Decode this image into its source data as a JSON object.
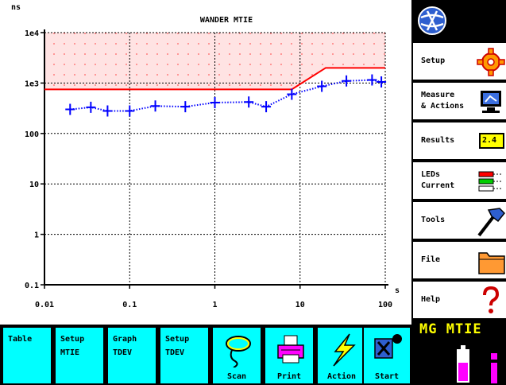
{
  "chart_data": {
    "type": "line",
    "title": "WANDER MTIE",
    "ylabel": "ns",
    "xlabel": "s",
    "xscale": "log",
    "yscale": "log",
    "xlim": [
      0.01,
      100
    ],
    "ylim": [
      0.1,
      10000
    ],
    "x_ticks": [
      "0.01",
      "0.1",
      "1",
      "10",
      "100"
    ],
    "y_ticks": [
      "0.1",
      "1",
      "10",
      "100",
      "1e3",
      "1e4"
    ],
    "grid": true,
    "series": [
      {
        "role": "mask",
        "color": "#ff0000",
        "x": [
          0.01,
          8,
          20,
          100
        ],
        "y": [
          750,
          750,
          2000,
          2000
        ]
      },
      {
        "role": "measurement",
        "color": "#0000ff",
        "marker": "+",
        "x": [
          0.02,
          0.035,
          0.055,
          0.1,
          0.2,
          0.45,
          1.0,
          2.5,
          4.0,
          8.0,
          18.0,
          35.0,
          70.0,
          90.0
        ],
        "y": [
          300,
          330,
          280,
          280,
          350,
          340,
          410,
          420,
          340,
          600,
          860,
          1100,
          1150,
          1050
        ]
      }
    ]
  },
  "sidebar": {
    "items": [
      {
        "label": "Setup",
        "icon": "gear-icon"
      },
      {
        "label": "Measure\n& Actions",
        "icon": "monitor-icon"
      },
      {
        "label": "Results",
        "value": "2.4",
        "icon": "results-box-icon"
      },
      {
        "label": "LEDs\nCurrent",
        "icon": "leds-icon"
      },
      {
        "label": "Tools",
        "icon": "hammer-icon"
      },
      {
        "label": "File",
        "icon": "folder-icon"
      },
      {
        "label": "Help",
        "icon": "question-icon"
      }
    ],
    "status": "MG MTIE",
    "status_icon": "battery-icon"
  },
  "toolbar": {
    "buttons": [
      {
        "top": "Table",
        "bottom": ""
      },
      {
        "top": "Setup\nMTIE",
        "bottom": ""
      },
      {
        "top": "Graph\nTDEV",
        "bottom": ""
      },
      {
        "top": "Setup\nTDEV",
        "bottom": ""
      },
      {
        "top": "",
        "bottom": "Scan"
      },
      {
        "top": "",
        "bottom": "Print"
      },
      {
        "top": "",
        "bottom": "Action"
      },
      {
        "top": "",
        "bottom": "Start"
      }
    ]
  },
  "colors": {
    "cyan_button": "#00ffff",
    "mask": "#ff0000",
    "measurement": "#0000ff",
    "status_text": "#ffff00"
  }
}
